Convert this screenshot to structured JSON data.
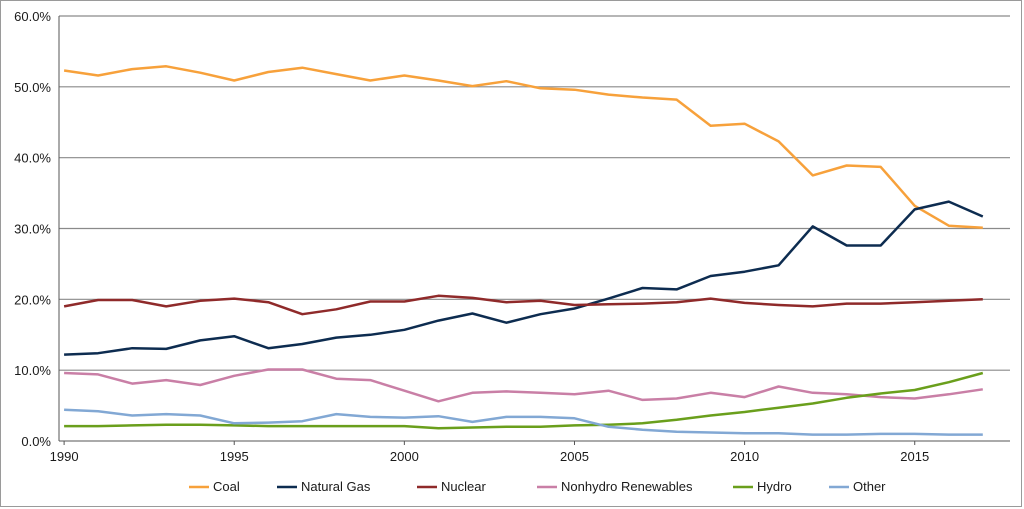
{
  "chart_data": {
    "type": "line",
    "x": [
      1990,
      1991,
      1992,
      1993,
      1994,
      1995,
      1996,
      1997,
      1998,
      1999,
      2000,
      2001,
      2002,
      2003,
      2004,
      2005,
      2006,
      2007,
      2008,
      2009,
      2010,
      2011,
      2012,
      2013,
      2014,
      2015,
      2016,
      2017
    ],
    "xticks": [
      1990,
      1995,
      2000,
      2005,
      2010,
      2015
    ],
    "xtick_labels": [
      "1990",
      "1995",
      "2000",
      "2005",
      "2010",
      "2015"
    ],
    "yticks": [
      0,
      10,
      20,
      30,
      40,
      50,
      60
    ],
    "ytick_labels": [
      "0.0%",
      "10.0%",
      "20.0%",
      "30.0%",
      "40.0%",
      "50.0%",
      "60.0%"
    ],
    "ylim": [
      0,
      60
    ],
    "grid": "horizontal",
    "legend_position": "bottom",
    "series": [
      {
        "name": "Coal",
        "color": "#f7a13b",
        "values": [
          52.3,
          51.6,
          52.5,
          52.9,
          52.0,
          50.9,
          52.1,
          52.7,
          51.8,
          50.9,
          51.6,
          50.9,
          50.1,
          50.8,
          49.8,
          49.6,
          48.9,
          48.5,
          48.2,
          44.5,
          44.8,
          42.3,
          37.5,
          38.9,
          38.7,
          33.2,
          30.4,
          30.1
        ]
      },
      {
        "name": "Natural Gas",
        "color": "#0d2c50",
        "values": [
          12.2,
          12.4,
          13.1,
          13.0,
          14.2,
          14.8,
          13.1,
          13.7,
          14.6,
          15.0,
          15.7,
          17.0,
          18.0,
          16.7,
          17.9,
          18.7,
          20.1,
          21.6,
          21.4,
          23.3,
          23.9,
          24.8,
          30.3,
          27.6,
          27.6,
          32.7,
          33.8,
          31.7
        ]
      },
      {
        "name": "Nuclear",
        "color": "#8f2a2a",
        "values": [
          19.0,
          19.9,
          19.9,
          19.0,
          19.8,
          20.1,
          19.6,
          17.9,
          18.6,
          19.7,
          19.7,
          20.5,
          20.2,
          19.6,
          19.8,
          19.2,
          19.3,
          19.4,
          19.6,
          20.1,
          19.5,
          19.2,
          19.0,
          19.4,
          19.4,
          19.6,
          19.8,
          20.0
        ]
      },
      {
        "name": "Nonhydro Renewables",
        "color": "#c97fa6",
        "values": [
          9.6,
          9.4,
          8.1,
          8.6,
          7.9,
          9.2,
          10.1,
          10.1,
          8.8,
          8.6,
          7.1,
          5.6,
          6.8,
          7.0,
          6.8,
          6.6,
          7.1,
          5.8,
          6.0,
          6.8,
          6.2,
          7.7,
          6.8,
          6.6,
          6.2,
          6.0,
          6.6,
          7.3
        ]
      },
      {
        "name": "Hydro",
        "color": "#6a9f1c",
        "values": [
          2.1,
          2.1,
          2.2,
          2.3,
          2.3,
          2.2,
          2.1,
          2.1,
          2.1,
          2.1,
          2.1,
          1.8,
          1.9,
          2.0,
          2.0,
          2.2,
          2.3,
          2.5,
          3.0,
          3.6,
          4.1,
          4.7,
          5.3,
          6.1,
          6.7,
          7.2,
          8.3,
          9.6
        ]
      },
      {
        "name": "Other",
        "color": "#82a8d4",
        "values": [
          4.4,
          4.2,
          3.6,
          3.8,
          3.6,
          2.5,
          2.6,
          2.8,
          3.8,
          3.4,
          3.3,
          3.5,
          2.7,
          3.4,
          3.4,
          3.2,
          2.0,
          1.6,
          1.3,
          1.2,
          1.1,
          1.1,
          0.9,
          0.9,
          1.0,
          1.0,
          0.9,
          0.9
        ]
      }
    ]
  }
}
